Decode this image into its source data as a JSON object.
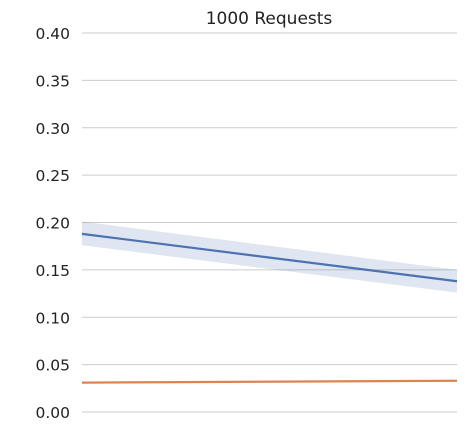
{
  "chart_data": {
    "type": "line",
    "title": "1000 Requests",
    "xlabel": "",
    "ylabel": "",
    "ylim": [
      0.0,
      0.4
    ],
    "xlim": [
      0,
      1
    ],
    "yticks": [
      "0.00",
      "0.05",
      "0.10",
      "0.15",
      "0.20",
      "0.25",
      "0.30",
      "0.35",
      "0.40"
    ],
    "ytick_values": [
      0.0,
      0.05,
      0.1,
      0.15,
      0.2,
      0.25,
      0.3,
      0.35,
      0.4
    ],
    "grid": true,
    "legend": false,
    "series": [
      {
        "color": "#4c72b0",
        "band_color": "#4c72b0",
        "x": [
          0,
          1
        ],
        "values": [
          0.188,
          0.138
        ],
        "band_lower": [
          0.176,
          0.126
        ],
        "band_upper": [
          0.201,
          0.15
        ]
      },
      {
        "color": "#dd8452",
        "band_color": "#dd8452",
        "x": [
          0,
          1
        ],
        "values": [
          0.031,
          0.033
        ],
        "band_lower": [
          0.0305,
          0.0325
        ],
        "band_upper": [
          0.0315,
          0.0335
        ]
      }
    ]
  }
}
